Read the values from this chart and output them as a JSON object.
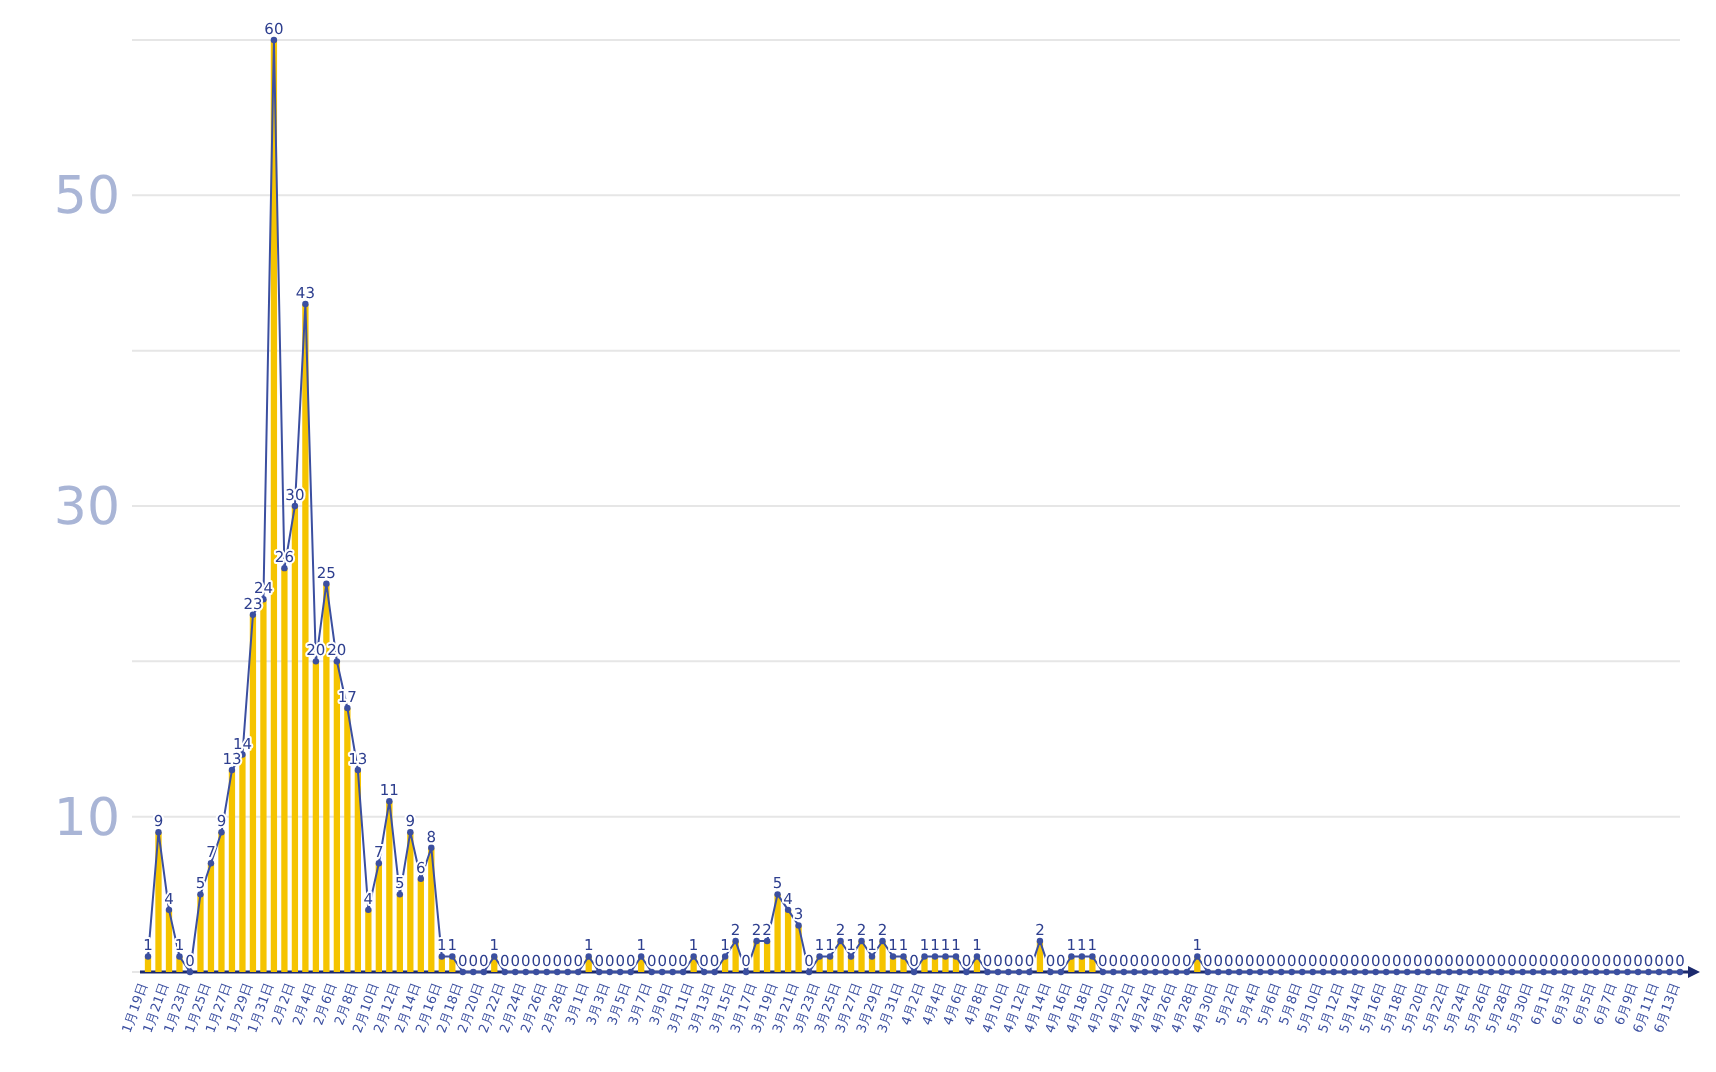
{
  "chart_data": {
    "type": "bar",
    "categories": [
      "1月19日",
      null,
      "1月21日",
      null,
      "1月23日",
      null,
      "1月25日",
      null,
      "1月27日",
      null,
      "1月29日",
      null,
      "1月31日",
      null,
      "2月2日",
      null,
      "2月4日",
      null,
      "2月6日",
      null,
      "2月8日",
      null,
      "2月10日",
      null,
      "2月12日",
      null,
      "2月14日",
      null,
      "2月16日",
      null,
      "2月18日",
      null,
      "2月20日",
      null,
      "2月22日",
      null,
      "2月24日",
      null,
      "2月26日",
      null,
      "2月28日",
      null,
      "3月1日",
      null,
      "3月3日",
      null,
      "3月5日",
      null,
      "3月7日",
      null,
      "3月9日",
      null,
      "3月11日",
      null,
      "3月13日",
      null,
      "3月15日",
      null,
      "3月17日",
      null,
      "3月19日",
      null,
      "3月21日",
      null,
      "3月23日",
      null,
      "3月25日",
      null,
      "3月27日",
      null,
      "3月29日",
      null,
      "3月31日",
      null,
      "4月2日",
      null,
      "4月4日",
      null,
      "4月6日",
      null,
      "4月8日",
      null,
      "4月10日",
      null,
      "4月12日",
      null,
      "4月14日",
      null,
      "4月16日",
      null,
      "4月18日",
      null,
      "4月20日",
      null,
      "4月22日",
      null,
      "4月24日",
      null,
      "4月26日",
      null,
      "4月28日",
      null,
      "4月30日",
      null,
      "5月2日",
      null,
      "5月4日",
      null,
      "5月6日",
      null,
      "5月8日",
      null,
      "5月10日",
      null,
      "5月12日",
      null,
      "5月14日",
      null,
      "5月16日",
      null,
      "5月18日",
      null,
      "5月20日",
      null,
      "5月22日",
      null,
      "5月24日",
      null,
      "5月26日",
      null,
      "5月28日",
      null,
      "5月30日",
      null,
      "6月1日",
      null,
      "6月3日",
      null,
      "6月5日",
      null,
      "6月7日",
      null,
      "6月9日",
      null,
      "6月11日",
      null,
      "6月13日"
    ],
    "series": [
      {
        "color": "#f5c400",
        "values": [
          1,
          9,
          4,
          1,
          0,
          5,
          7,
          9,
          13,
          14,
          23,
          24,
          60,
          26,
          30,
          43,
          20,
          25,
          20,
          17,
          13,
          4,
          7,
          11,
          5,
          9,
          6,
          8,
          1,
          1,
          0,
          0,
          0,
          1,
          0,
          0,
          0,
          0,
          0,
          0,
          0,
          0,
          1,
          0,
          0,
          0,
          0,
          1,
          0,
          0,
          0,
          0,
          1,
          0,
          0,
          1,
          2,
          0,
          2,
          2,
          5,
          4,
          3,
          0,
          1,
          1,
          2,
          1,
          2,
          1,
          2,
          1,
          1,
          0,
          1,
          1,
          1,
          1,
          0,
          1,
          0,
          0,
          0,
          0,
          0,
          2,
          0,
          0,
          1,
          1,
          1,
          0,
          0,
          0,
          0,
          0,
          0,
          0,
          0,
          0,
          1,
          0,
          0,
          0,
          0,
          0,
          0,
          0,
          0,
          0,
          0,
          0,
          0,
          0,
          0,
          0,
          0,
          0,
          0,
          0,
          0,
          0,
          0,
          0,
          0,
          0,
          0,
          0,
          0,
          0,
          0,
          0,
          0,
          0,
          0,
          0,
          0,
          0,
          0,
          0,
          0,
          0,
          0,
          0,
          0,
          0,
          0
        ]
      },
      {
        "type": "line",
        "color": "#3b4fa0",
        "values": [
          1,
          9,
          4,
          1,
          0,
          5,
          7,
          9,
          13,
          14,
          23,
          24,
          60,
          26,
          30,
          43,
          20,
          25,
          20,
          17,
          13,
          4,
          7,
          11,
          5,
          9,
          6,
          8,
          1,
          1,
          0,
          0,
          0,
          1,
          0,
          0,
          0,
          0,
          0,
          0,
          0,
          0,
          1,
          0,
          0,
          0,
          0,
          1,
          0,
          0,
          0,
          0,
          1,
          0,
          0,
          1,
          2,
          0,
          2,
          2,
          5,
          4,
          3,
          0,
          1,
          1,
          2,
          1,
          2,
          1,
          2,
          1,
          1,
          0,
          1,
          1,
          1,
          1,
          0,
          1,
          0,
          0,
          0,
          0,
          0,
          2,
          0,
          0,
          1,
          1,
          1,
          0,
          0,
          0,
          0,
          0,
          0,
          0,
          0,
          0,
          1,
          0,
          0,
          0,
          0,
          0,
          0,
          0,
          0,
          0,
          0,
          0,
          0,
          0,
          0,
          0,
          0,
          0,
          0,
          0,
          0,
          0,
          0,
          0,
          0,
          0,
          0,
          0,
          0,
          0,
          0,
          0,
          0,
          0,
          0,
          0,
          0,
          0,
          0,
          0,
          0,
          0,
          0,
          0,
          0,
          0,
          0
        ],
        "value_labels": [
          "1",
          "9",
          "4",
          "1",
          "0",
          "5",
          "7",
          "9",
          "13",
          "14",
          "23",
          "24",
          "60",
          "26",
          "30",
          "43",
          "20",
          "25",
          "20",
          "17",
          "13",
          "4",
          "7",
          "11",
          "5",
          "9",
          "6",
          "8",
          "1",
          "1",
          "0",
          "0",
          "0",
          "1",
          "0",
          "0",
          "0",
          "0",
          "0",
          "0",
          "0",
          "0",
          "1",
          "0",
          "0",
          "0",
          "0",
          "1",
          "0",
          "0",
          "0",
          "0",
          "1",
          "0",
          "0",
          "1",
          "2",
          "0",
          "2",
          "2",
          "5",
          "4",
          "3",
          "0",
          "1",
          "1",
          "2",
          "1",
          "2",
          "1",
          "2",
          "1",
          "1",
          "0",
          "1",
          "1",
          "1",
          "1",
          "0",
          "1",
          "0",
          "0",
          "0",
          "0",
          "0",
          "2",
          "0",
          "0",
          "1",
          "1",
          "1",
          "0",
          "0",
          "0",
          "0",
          "0",
          "0",
          "0",
          "0",
          "0",
          "1",
          "0",
          "0",
          "0",
          "0",
          "0",
          "0",
          "0",
          "0",
          "0",
          "0",
          "0",
          "0",
          "0",
          "0",
          "0",
          "0",
          "0",
          "0",
          "0",
          "0",
          "0",
          "0",
          "0",
          "0",
          "0",
          "0",
          "0",
          "0",
          "0",
          "0",
          "0",
          "0",
          "0",
          "0",
          "0",
          "0",
          "0",
          "0",
          "0",
          "0",
          "0",
          "0",
          "0",
          "0",
          "0",
          "0"
        ]
      }
    ],
    "marker": "circle",
    "ylim": [
      0,
      60
    ],
    "yticks": [
      {
        "value": 0,
        "label": null
      },
      10,
      {
        "value": 20,
        "label": null
      },
      30,
      {
        "value": 40,
        "label": null
      },
      50,
      {
        "value": 60,
        "label": null
      }
    ],
    "grid": "y"
  }
}
